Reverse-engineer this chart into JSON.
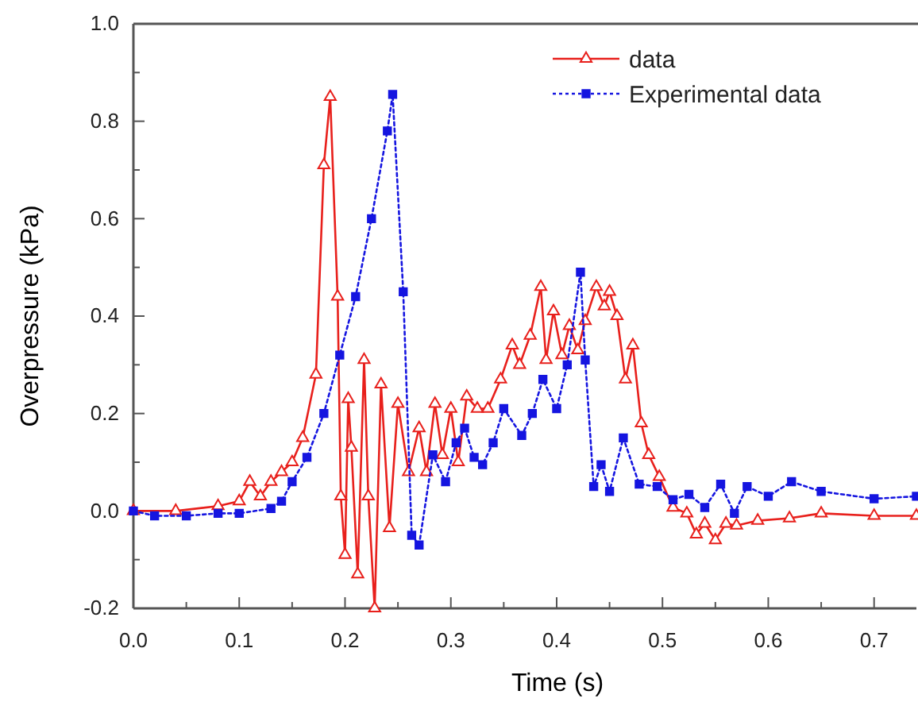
{
  "chart_data": {
    "type": "line",
    "xlabel": "Time (s)",
    "ylabel": "Overpressure (kPa)",
    "xlim": [
      0,
      0.74
    ],
    "ylim": [
      -0.2,
      1.0
    ],
    "xticks": [
      {
        "value": 0,
        "label": "0.0"
      },
      {
        "value": 0.05,
        "label": null
      },
      {
        "value": 0.1,
        "label": "0.1"
      },
      {
        "value": 0.15,
        "label": null
      },
      {
        "value": 0.2,
        "label": "0.2"
      },
      {
        "value": 0.25,
        "label": null
      },
      {
        "value": 0.3,
        "label": "0.3"
      },
      {
        "value": 0.35,
        "label": null
      },
      {
        "value": 0.4,
        "label": "0.4"
      },
      {
        "value": 0.45,
        "label": null
      },
      {
        "value": 0.5,
        "label": "0.5"
      },
      {
        "value": 0.55,
        "label": null
      },
      {
        "value": 0.6,
        "label": "0.6"
      },
      {
        "value": 0.65,
        "label": null
      },
      {
        "value": 0.7,
        "label": "0.7"
      }
    ],
    "yticks": [
      -0.2,
      {
        "value": -0.1,
        "label": null
      },
      {
        "value": 0,
        "label": "0.0"
      },
      {
        "value": 0.1,
        "label": null
      },
      0.2,
      {
        "value": 0.3,
        "label": null
      },
      0.4,
      {
        "value": 0.5,
        "label": null
      },
      0.6,
      {
        "value": 0.7,
        "label": null
      },
      0.8,
      {
        "value": 0.9,
        "label": null
      },
      {
        "value": 1.0,
        "label": "1.0"
      }
    ],
    "grid": false,
    "legend": "top right",
    "series": [
      {
        "name": "data",
        "color": "#e8201c",
        "marker": "triangle",
        "line_style": "solid",
        "x": [
          0,
          0.04,
          0.08,
          0.1,
          0.11,
          0.12,
          0.13,
          0.14,
          0.15,
          0.16,
          0.1725,
          0.18,
          0.186,
          0.193,
          0.196,
          0.2,
          0.203,
          0.206,
          0.212,
          0.218,
          0.222,
          0.228,
          0.234,
          0.242,
          0.25,
          0.26,
          0.27,
          0.277,
          0.285,
          0.292,
          0.3,
          0.307,
          0.315,
          0.325,
          0.335,
          0.347,
          0.358,
          0.365,
          0.375,
          0.385,
          0.39,
          0.397,
          0.405,
          0.412,
          0.42,
          0.427,
          0.4375,
          0.445,
          0.45,
          0.457,
          0.465,
          0.472,
          0.48,
          0.487,
          0.497,
          0.51,
          0.523,
          0.532,
          0.54,
          0.55,
          0.56,
          0.57,
          0.59,
          0.62,
          0.65,
          0.7,
          0.74
        ],
        "values": [
          0,
          0,
          0.01,
          0.02,
          0.06,
          0.03,
          0.06,
          0.08,
          0.1,
          0.15,
          0.28,
          0.71,
          0.85,
          0.44,
          0.03,
          -0.09,
          0.23,
          0.13,
          -0.13,
          0.31,
          0.03,
          -0.2,
          0.26,
          -0.035,
          0.22,
          0.08,
          0.17,
          0.08,
          0.22,
          0.115,
          0.21,
          0.1,
          0.235,
          0.21,
          0.21,
          0.27,
          0.34,
          0.3,
          0.36,
          0.46,
          0.31,
          0.41,
          0.32,
          0.38,
          0.33,
          0.39,
          0.46,
          0.42,
          0.45,
          0.4,
          0.27,
          0.34,
          0.18,
          0.115,
          0.07,
          0.007,
          -0.005,
          -0.048,
          -0.026,
          -0.06,
          -0.026,
          -0.03,
          -0.02,
          -0.015,
          -0.005,
          -0.01,
          -0.01
        ]
      },
      {
        "name": "Experimental data",
        "color": "#1515e0",
        "marker": "square",
        "line_style": "dotted",
        "x": [
          0,
          0.02,
          0.05,
          0.08,
          0.1,
          0.13,
          0.14,
          0.15,
          0.164,
          0.18,
          0.195,
          0.21,
          0.225,
          0.24,
          0.245,
          0.255,
          0.263,
          0.27,
          0.283,
          0.295,
          0.305,
          0.313,
          0.322,
          0.33,
          0.34,
          0.35,
          0.367,
          0.377,
          0.387,
          0.4,
          0.41,
          0.4225,
          0.427,
          0.435,
          0.442,
          0.45,
          0.463,
          0.478,
          0.495,
          0.51,
          0.525,
          0.54,
          0.555,
          0.568,
          0.58,
          0.6,
          0.622,
          0.65,
          0.7,
          0.74
        ],
        "values": [
          0,
          -0.01,
          -0.01,
          -0.005,
          -0.005,
          0.005,
          0.02,
          0.06,
          0.11,
          0.2,
          0.32,
          0.44,
          0.6,
          0.78,
          0.855,
          0.45,
          -0.05,
          -0.07,
          0.115,
          0.06,
          0.14,
          0.17,
          0.11,
          0.095,
          0.14,
          0.21,
          0.155,
          0.2,
          0.27,
          0.21,
          0.3,
          0.49,
          0.31,
          0.05,
          0.095,
          0.04,
          0.15,
          0.055,
          0.05,
          0.023,
          0.034,
          0.007,
          0.055,
          -0.005,
          0.05,
          0.03,
          0.06,
          0.04,
          0.025,
          0.03
        ]
      }
    ]
  }
}
